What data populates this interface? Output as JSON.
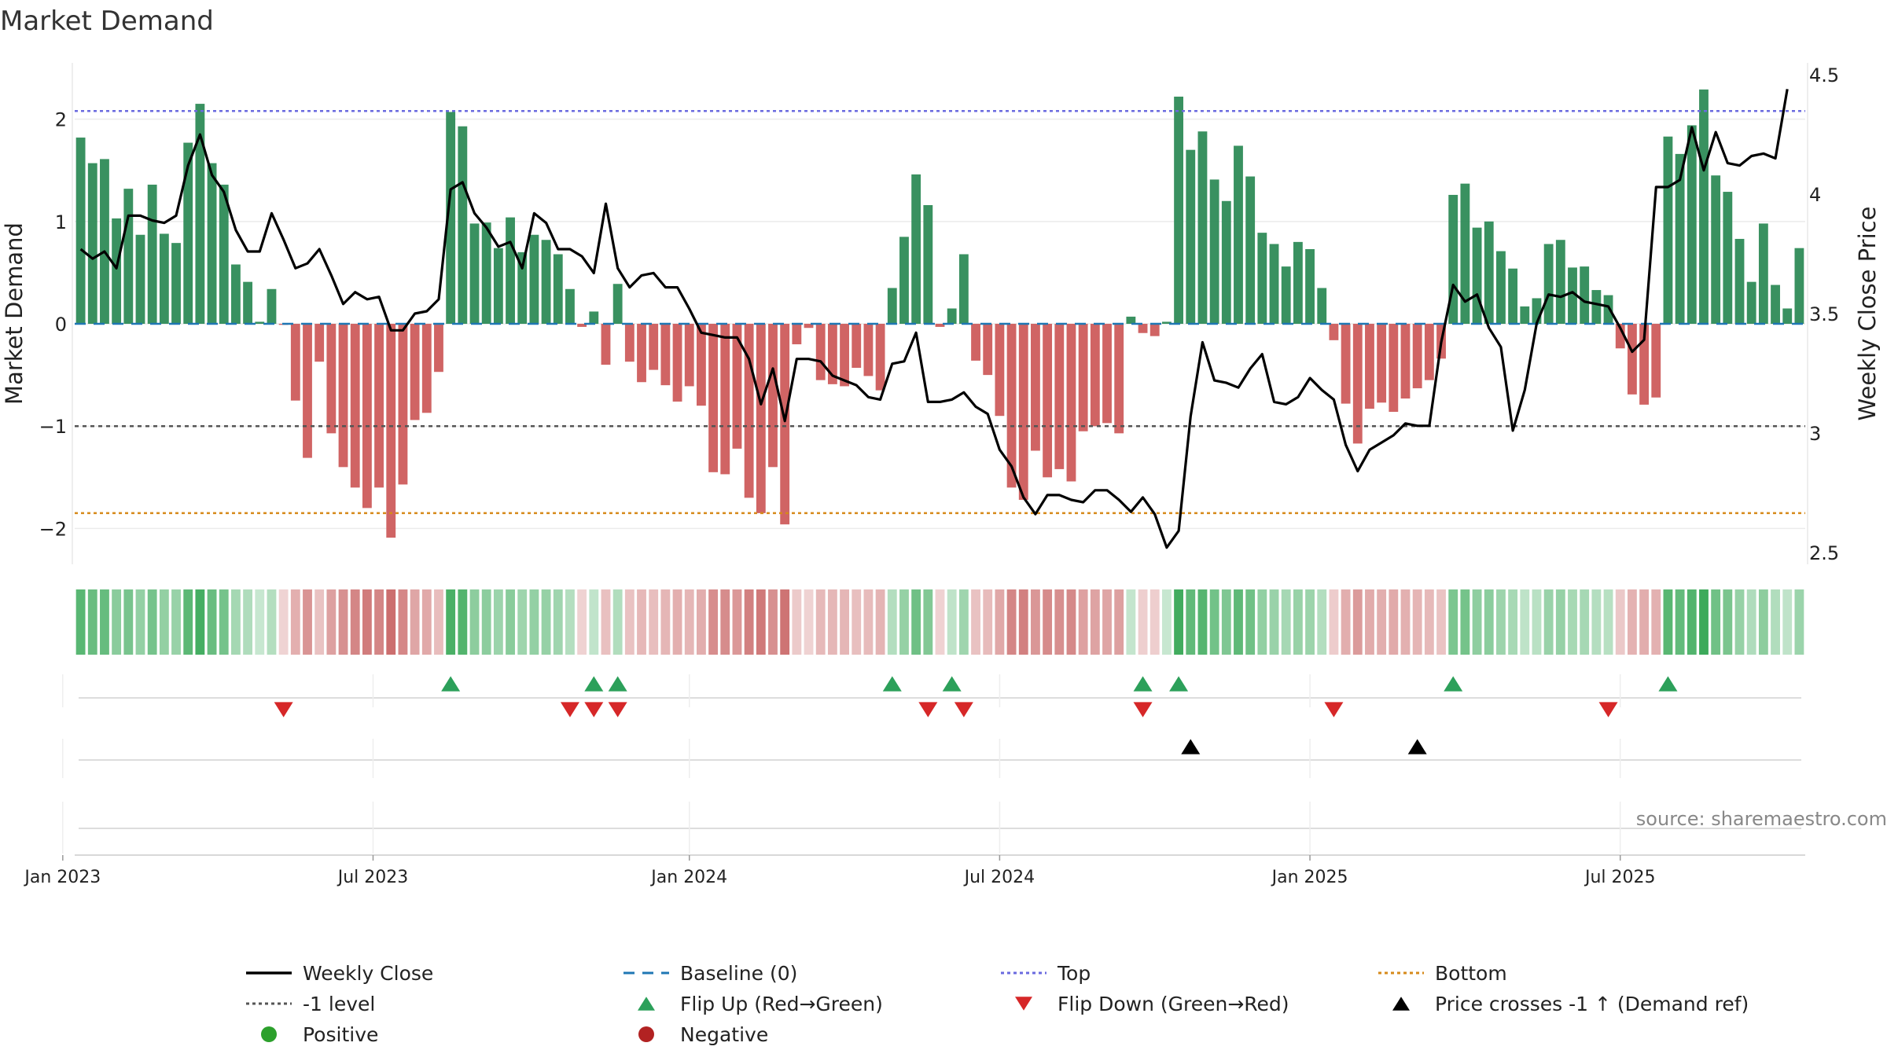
{
  "chart_data": {
    "type": "bar",
    "title": "Market Demand",
    "ylabel_left": "Market Demand",
    "ylabel_right": "Weekly Close Price",
    "ylim_left": [
      -2.35,
      2.55
    ],
    "ylim_right": [
      2.45,
      4.55
    ],
    "left_ticks": [
      {
        "v": 2,
        "label": "2"
      },
      {
        "v": 1,
        "label": "1"
      },
      {
        "v": 0,
        "label": "0"
      },
      {
        "v": -1,
        "label": "−1"
      },
      {
        "v": -2,
        "label": "−2"
      }
    ],
    "right_ticks": [
      {
        "v": 4.5,
        "label": "4.5"
      },
      {
        "v": 4,
        "label": "4"
      },
      {
        "v": 3.5,
        "label": "3.5"
      },
      {
        "v": 3,
        "label": "3"
      },
      {
        "v": 2.5,
        "label": "2.5"
      }
    ],
    "x_ticks": [
      {
        "i": -1.5,
        "label": "Jan 2023"
      },
      {
        "i": 24.5,
        "label": "Jul 2023"
      },
      {
        "i": 51,
        "label": "Jan 2024"
      },
      {
        "i": 77,
        "label": "Jul 2024"
      },
      {
        "i": 103,
        "label": "Jan 2025"
      },
      {
        "i": 129,
        "label": "Jul 2025"
      }
    ],
    "reference_lines": {
      "top": 2.08,
      "bottom": -1.85,
      "minus_one": -1.0,
      "baseline": 0
    },
    "demand": [
      1.82,
      1.57,
      1.61,
      1.03,
      1.32,
      0.87,
      1.36,
      0.88,
      0.79,
      1.77,
      2.15,
      1.57,
      1.36,
      0.58,
      0.41,
      0.02,
      0.34,
      -0.01,
      -0.75,
      -1.31,
      -0.37,
      -1.07,
      -1.4,
      -1.6,
      -1.8,
      -1.6,
      -2.09,
      -1.57,
      -0.94,
      -0.87,
      -0.47,
      2.07,
      1.93,
      0.98,
      0.99,
      0.74,
      1.04,
      0.7,
      0.87,
      0.82,
      0.68,
      0.34,
      -0.03,
      0.12,
      -0.4,
      0.39,
      -0.37,
      -0.57,
      -0.45,
      -0.6,
      -0.76,
      -0.61,
      -0.8,
      -1.45,
      -1.47,
      -1.22,
      -1.7,
      -1.85,
      -1.4,
      -1.96,
      -0.2,
      -0.04,
      -0.55,
      -0.59,
      -0.61,
      -0.43,
      -0.51,
      -0.65,
      0.35,
      0.85,
      1.46,
      1.16,
      -0.03,
      0.15,
      0.68,
      -0.36,
      -0.5,
      -0.9,
      -1.6,
      -1.72,
      -1.24,
      -1.5,
      -1.42,
      -1.54,
      -1.05,
      -1.0,
      -0.97,
      -1.07,
      0.07,
      -0.09,
      -0.12,
      0.02,
      2.22,
      1.7,
      1.88,
      1.41,
      1.2,
      1.74,
      1.44,
      0.89,
      0.78,
      0.56,
      0.8,
      0.73,
      0.35,
      -0.16,
      -0.78,
      -1.17,
      -0.83,
      -0.77,
      -0.86,
      -0.73,
      -0.63,
      -0.55,
      -0.34,
      1.26,
      1.37,
      0.94,
      1.0,
      0.71,
      0.54,
      0.17,
      0.25,
      0.78,
      0.82,
      0.55,
      0.56,
      0.33,
      0.28,
      -0.24,
      -0.69,
      -0.79,
      -0.72,
      1.83,
      1.66,
      1.94,
      2.29,
      1.45,
      1.29,
      0.83,
      0.41,
      0.98,
      0.38,
      0.15,
      0.74
    ],
    "weekly_close": [
      3.77,
      3.73,
      3.76,
      3.69,
      3.91,
      3.91,
      3.89,
      3.88,
      3.91,
      4.12,
      4.25,
      4.08,
      4.01,
      3.85,
      3.76,
      3.76,
      3.92,
      3.81,
      3.69,
      3.71,
      3.77,
      3.66,
      3.54,
      3.59,
      3.56,
      3.57,
      3.43,
      3.43,
      3.5,
      3.51,
      3.56,
      4.02,
      4.05,
      3.92,
      3.86,
      3.78,
      3.8,
      3.69,
      3.92,
      3.88,
      3.77,
      3.77,
      3.74,
      3.67,
      3.96,
      3.69,
      3.61,
      3.66,
      3.67,
      3.61,
      3.61,
      3.52,
      3.42,
      3.41,
      3.4,
      3.4,
      3.31,
      3.12,
      3.27,
      3.05,
      3.31,
      3.31,
      3.3,
      3.24,
      3.22,
      3.2,
      3.15,
      3.14,
      3.29,
      3.3,
      3.42,
      3.13,
      3.13,
      3.14,
      3.17,
      3.11,
      3.08,
      2.93,
      2.86,
      2.73,
      2.66,
      2.74,
      2.74,
      2.72,
      2.71,
      2.76,
      2.76,
      2.72,
      2.67,
      2.73,
      2.66,
      2.52,
      2.59,
      3.07,
      3.38,
      3.22,
      3.21,
      3.19,
      3.27,
      3.33,
      3.13,
      3.12,
      3.15,
      3.23,
      3.18,
      3.14,
      2.95,
      2.84,
      2.93,
      2.96,
      2.99,
      3.04,
      3.03,
      3.03,
      3.38,
      3.62,
      3.55,
      3.58,
      3.44,
      3.36,
      3.01,
      3.18,
      3.46,
      3.58,
      3.57,
      3.59,
      3.55,
      3.54,
      3.53,
      3.44,
      3.34,
      3.39,
      4.03,
      4.03,
      4.06,
      4.28,
      4.1,
      4.26,
      4.13,
      4.12,
      4.16,
      4.17,
      4.15,
      4.44
    ],
    "flip_up": [
      31,
      43,
      45,
      68,
      73,
      89,
      92,
      115,
      133
    ],
    "flip_down": [
      17,
      41,
      43,
      45,
      71,
      74,
      89,
      105,
      128
    ],
    "price_cross": [
      93,
      112
    ],
    "source": "source: sharemaestro.com",
    "legend": [
      {
        "label": "Weekly Close",
        "kind": "solid",
        "color": "#000000"
      },
      {
        "label": "Baseline (0)",
        "kind": "dash",
        "color": "#1f77b4"
      },
      {
        "label": "Top",
        "kind": "dot",
        "color": "#6a6adf"
      },
      {
        "label": "Bottom",
        "kind": "dot",
        "color": "#d68a1a"
      },
      {
        "label": "-1 level",
        "kind": "dot",
        "color": "#555555"
      },
      {
        "label": "Flip Up (Red→Green)",
        "kind": "tri-up",
        "color": "#2ca05a"
      },
      {
        "label": "Flip Down (Green→Red)",
        "kind": "tri-down",
        "color": "#d62728"
      },
      {
        "label": "Price crosses -1 ↑ (Demand ref)",
        "kind": "tri-up",
        "color": "#000000"
      },
      {
        "label": "Positive",
        "kind": "circle",
        "color": "#2ca02c"
      },
      {
        "label": "Negative",
        "kind": "circle",
        "color": "#b22222"
      }
    ],
    "colors": {
      "positive": "#2e8b57",
      "negative": "#cd5c5c",
      "price": "#000000",
      "grid": "#ebebeb"
    }
  }
}
